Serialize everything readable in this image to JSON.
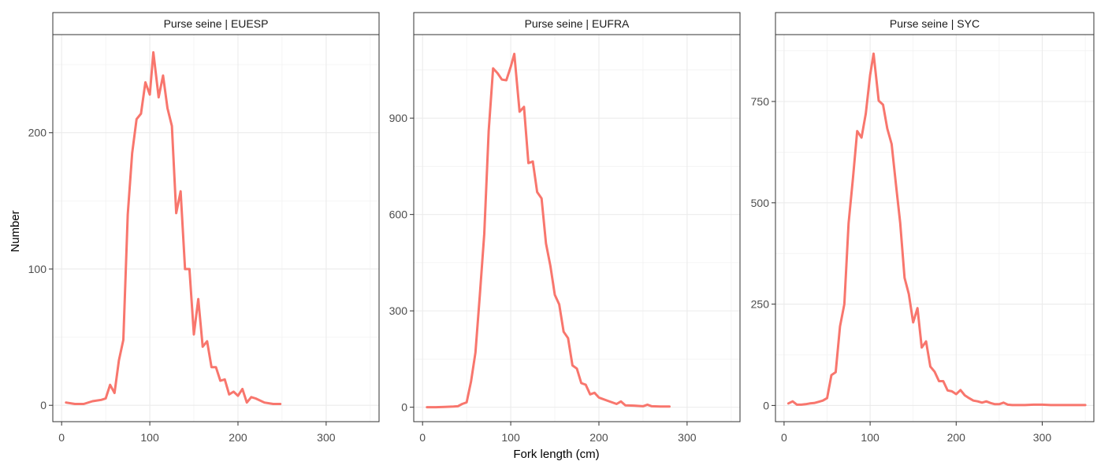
{
  "chart_data": {
    "type": "line",
    "xlabel": "Fork length (cm)",
    "ylabel": "Number",
    "grid": true,
    "legend": "none",
    "line_color": "#F8766D",
    "x_ticks": [
      0,
      100,
      200,
      300
    ],
    "panels": [
      {
        "title": "Purse seine | EUESP",
        "xlim": [
          -10,
          360
        ],
        "ylim": [
          -12,
          272
        ],
        "y_ticks": [
          0,
          100,
          200
        ],
        "points": [
          [
            5,
            2
          ],
          [
            15,
            1
          ],
          [
            25,
            1
          ],
          [
            35,
            3
          ],
          [
            45,
            4
          ],
          [
            50,
            5
          ],
          [
            55,
            15
          ],
          [
            60,
            9
          ],
          [
            65,
            33
          ],
          [
            70,
            48
          ],
          [
            75,
            140
          ],
          [
            80,
            185
          ],
          [
            85,
            210
          ],
          [
            90,
            214
          ],
          [
            95,
            237
          ],
          [
            100,
            228
          ],
          [
            104,
            259
          ],
          [
            110,
            226
          ],
          [
            115,
            242
          ],
          [
            120,
            218
          ],
          [
            125,
            205
          ],
          [
            130,
            141
          ],
          [
            135,
            157
          ],
          [
            140,
            100
          ],
          [
            145,
            100
          ],
          [
            150,
            52
          ],
          [
            155,
            78
          ],
          [
            160,
            43
          ],
          [
            165,
            47
          ],
          [
            170,
            28
          ],
          [
            175,
            28
          ],
          [
            180,
            18
          ],
          [
            185,
            19
          ],
          [
            190,
            8
          ],
          [
            195,
            10
          ],
          [
            200,
            7
          ],
          [
            205,
            12
          ],
          [
            210,
            2
          ],
          [
            215,
            6
          ],
          [
            220,
            5
          ],
          [
            230,
            2
          ],
          [
            240,
            1
          ],
          [
            248,
            1
          ]
        ]
      },
      {
        "title": "Purse seine | EUFRA",
        "xlim": [
          -10,
          360
        ],
        "ylim": [
          -45,
          1160
        ],
        "y_ticks": [
          0,
          300,
          600,
          900
        ],
        "points": [
          [
            5,
            0
          ],
          [
            15,
            0
          ],
          [
            25,
            1
          ],
          [
            35,
            2
          ],
          [
            40,
            3
          ],
          [
            45,
            10
          ],
          [
            50,
            15
          ],
          [
            55,
            80
          ],
          [
            60,
            170
          ],
          [
            65,
            350
          ],
          [
            70,
            540
          ],
          [
            75,
            860
          ],
          [
            80,
            1055
          ],
          [
            85,
            1040
          ],
          [
            90,
            1020
          ],
          [
            95,
            1018
          ],
          [
            100,
            1060
          ],
          [
            104,
            1100
          ],
          [
            110,
            920
          ],
          [
            115,
            935
          ],
          [
            120,
            760
          ],
          [
            125,
            765
          ],
          [
            130,
            670
          ],
          [
            135,
            650
          ],
          [
            140,
            510
          ],
          [
            145,
            440
          ],
          [
            150,
            350
          ],
          [
            155,
            320
          ],
          [
            160,
            235
          ],
          [
            165,
            215
          ],
          [
            170,
            130
          ],
          [
            175,
            120
          ],
          [
            180,
            75
          ],
          [
            185,
            70
          ],
          [
            190,
            40
          ],
          [
            195,
            45
          ],
          [
            200,
            30
          ],
          [
            210,
            20
          ],
          [
            215,
            15
          ],
          [
            220,
            10
          ],
          [
            225,
            18
          ],
          [
            230,
            6
          ],
          [
            240,
            5
          ],
          [
            250,
            3
          ],
          [
            255,
            8
          ],
          [
            260,
            3
          ],
          [
            270,
            2
          ],
          [
            280,
            2
          ]
        ]
      },
      {
        "title": "Purse seine | SYC",
        "xlim": [
          -10,
          360
        ],
        "ylim": [
          -40,
          915
        ],
        "y_ticks": [
          0,
          250,
          500,
          750
        ],
        "points": [
          [
            5,
            5
          ],
          [
            10,
            10
          ],
          [
            15,
            2
          ],
          [
            20,
            2
          ],
          [
            25,
            3
          ],
          [
            30,
            5
          ],
          [
            35,
            6
          ],
          [
            40,
            9
          ],
          [
            45,
            12
          ],
          [
            50,
            18
          ],
          [
            55,
            75
          ],
          [
            60,
            82
          ],
          [
            65,
            195
          ],
          [
            70,
            250
          ],
          [
            75,
            450
          ],
          [
            80,
            560
          ],
          [
            85,
            677
          ],
          [
            90,
            661
          ],
          [
            95,
            720
          ],
          [
            100,
            815
          ],
          [
            104,
            868
          ],
          [
            110,
            752
          ],
          [
            115,
            742
          ],
          [
            120,
            683
          ],
          [
            125,
            645
          ],
          [
            130,
            545
          ],
          [
            135,
            450
          ],
          [
            140,
            315
          ],
          [
            145,
            275
          ],
          [
            150,
            205
          ],
          [
            155,
            240
          ],
          [
            160,
            143
          ],
          [
            165,
            158
          ],
          [
            170,
            96
          ],
          [
            175,
            83
          ],
          [
            180,
            60
          ],
          [
            185,
            60
          ],
          [
            190,
            37
          ],
          [
            195,
            35
          ],
          [
            200,
            28
          ],
          [
            205,
            38
          ],
          [
            210,
            25
          ],
          [
            215,
            18
          ],
          [
            220,
            12
          ],
          [
            225,
            10
          ],
          [
            230,
            7
          ],
          [
            235,
            10
          ],
          [
            240,
            6
          ],
          [
            245,
            3
          ],
          [
            250,
            3
          ],
          [
            255,
            7
          ],
          [
            260,
            2
          ],
          [
            265,
            1
          ],
          [
            270,
            1
          ],
          [
            280,
            1
          ],
          [
            290,
            2
          ],
          [
            300,
            2
          ],
          [
            310,
            1
          ],
          [
            320,
            1
          ],
          [
            330,
            1
          ],
          [
            340,
            1
          ],
          [
            350,
            1
          ]
        ]
      }
    ]
  }
}
